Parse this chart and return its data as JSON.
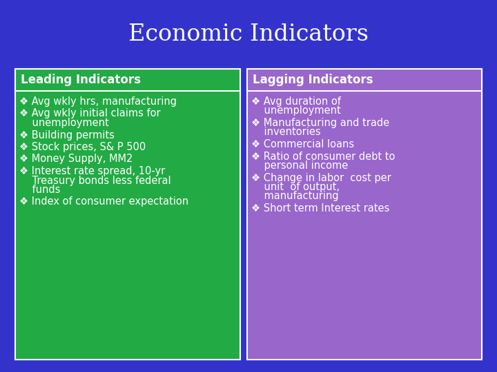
{
  "title": "Economic Indicators",
  "title_color": "#FFFFFF",
  "title_fontsize": 24,
  "background_color": "#3333CC",
  "left_box": {
    "header": "Leading Indicators",
    "header_bg": "#22AA44",
    "header_color": "#FFFFFF",
    "body_bg": "#22AA44",
    "body_color": "#FFFFFF",
    "items": [
      [
        "Avg wkly hrs, manufacturing"
      ],
      [
        "Avg wkly initial claims for",
        "    unemployment"
      ],
      [
        "Building permits"
      ],
      [
        "Stock prices, S& P 500"
      ],
      [
        "Money Supply, MM2"
      ],
      [
        "Interest rate spread, 10-yr",
        "    Treasury bonds less federal",
        "    funds"
      ],
      [
        "Index of consumer expectation"
      ]
    ]
  },
  "right_box": {
    "header": "Lagging Indicators",
    "header_bg": "#9966CC",
    "header_color": "#FFFFFF",
    "body_bg": "#9966CC",
    "body_color": "#FFFFFF",
    "items": [
      [
        "Avg duration of",
        "    unemployment"
      ],
      [
        "Manufacturing and trade",
        "    inventories"
      ],
      [
        "Commercial loans"
      ],
      [
        "Ratio of consumer debt to",
        "    personal income"
      ],
      [
        "Change in labor  cost per",
        "    unit  of output,",
        "    manufacturing"
      ],
      [
        "Short term Interest rates"
      ]
    ]
  },
  "bullet": "❖ ",
  "header_fontsize": 12,
  "item_fontsize": 10.5
}
